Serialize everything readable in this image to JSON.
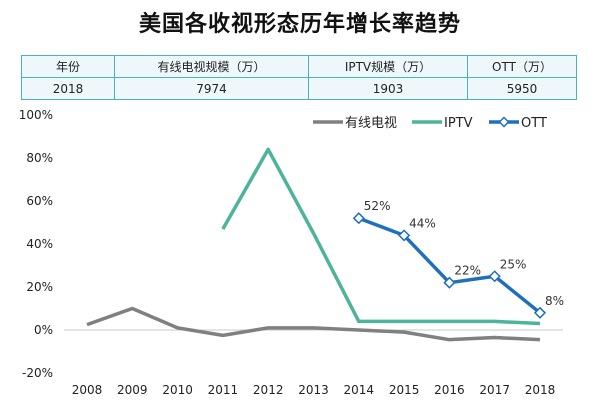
{
  "title": "美国各收视形态历年增长率趋势",
  "table": {
    "headers": [
      "年份",
      "有线电视规模（万）",
      "IPTV规模（万）",
      "OTT（万）"
    ],
    "row": [
      "2018",
      "7974",
      "1903",
      "5950"
    ]
  },
  "colors": {
    "cable": "#808080",
    "iptv": "#4db39b",
    "ott": "#1f6fbf",
    "table_border": "#49b3c2"
  },
  "chart_data": {
    "type": "line",
    "title": "美国各收视形态历年增长率趋势",
    "x": [
      "2008",
      "2009",
      "2010",
      "2011",
      "2012",
      "2013",
      "2014",
      "2015",
      "2016",
      "2017",
      "2018"
    ],
    "ylim": [
      -20,
      100
    ],
    "yticks": [
      "-20%",
      "0%",
      "20%",
      "40%",
      "60%",
      "80%",
      "100%"
    ],
    "ytick_values": [
      -20,
      0,
      20,
      40,
      60,
      80,
      100
    ],
    "legend_position": "top-right",
    "grid": false,
    "series": [
      {
        "name": "有线电视",
        "color": "#808080",
        "values": [
          2.5,
          10,
          1,
          -2.5,
          1,
          1,
          0,
          -1,
          -4.5,
          -3.5,
          -4.5
        ]
      },
      {
        "name": "IPTV",
        "color": "#4db39b",
        "values": [
          null,
          null,
          null,
          47,
          84,
          45,
          4,
          4,
          4,
          4,
          3
        ]
      },
      {
        "name": "OTT",
        "color": "#1f6fbf",
        "marker": "diamond",
        "values": [
          null,
          null,
          null,
          null,
          null,
          null,
          52,
          44,
          22,
          25,
          8
        ],
        "labels": [
          "",
          "",
          "",
          "",
          "",
          "",
          "52%",
          "44%",
          "22%",
          "25%",
          "8%"
        ]
      }
    ]
  }
}
